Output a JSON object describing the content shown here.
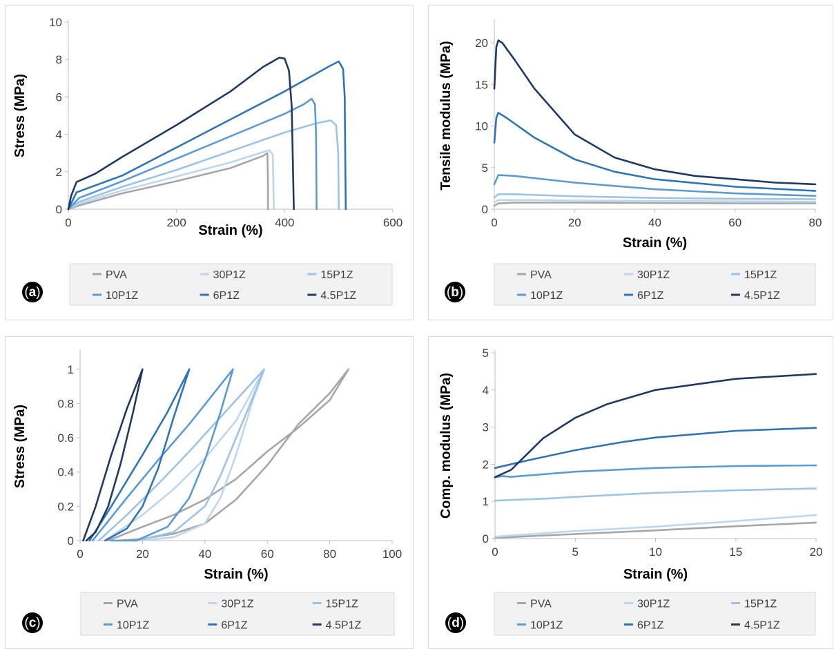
{
  "colors": {
    "PVA": "#a6a6a6",
    "30P1Z": "#bdd7ee",
    "15P1Z": "#9dc3e6",
    "10P1Z": "#5b9bd5",
    "6P1Z": "#2e75b6",
    "4.5P1Z": "#1f3864"
  },
  "legend": [
    "PVA",
    "30P1Z",
    "15P1Z",
    "10P1Z",
    "6P1Z",
    "4.5P1Z"
  ],
  "chart_data": [
    {
      "panel": "a",
      "type": "line",
      "xlabel": "Strain (%)",
      "ylabel": "Stress (MPa)",
      "xlim": [
        0,
        600
      ],
      "ylim": [
        0,
        10
      ],
      "xticks": [
        0,
        200,
        400,
        600
      ],
      "yticks": [
        0,
        2,
        4,
        6,
        8,
        10
      ],
      "series": [
        {
          "name": "PVA",
          "points": [
            [
              0,
              0
            ],
            [
              20,
              0.2
            ],
            [
              100,
              0.85
            ],
            [
              200,
              1.5
            ],
            [
              300,
              2.2
            ],
            [
              360,
              2.85
            ],
            [
              368,
              3.0
            ],
            [
              369,
              1.5
            ],
            [
              369,
              0
            ]
          ]
        },
        {
          "name": "30P1Z",
          "points": [
            [
              0,
              0
            ],
            [
              20,
              0.3
            ],
            [
              100,
              1.0
            ],
            [
              200,
              1.75
            ],
            [
              300,
              2.5
            ],
            [
              360,
              3.05
            ],
            [
              372,
              3.15
            ],
            [
              378,
              2.9
            ],
            [
              379,
              1.5
            ],
            [
              380,
              0
            ]
          ]
        },
        {
          "name": "15P1Z",
          "points": [
            [
              0,
              0
            ],
            [
              20,
              0.4
            ],
            [
              100,
              1.2
            ],
            [
              200,
              2.1
            ],
            [
              300,
              3.1
            ],
            [
              400,
              4.1
            ],
            [
              460,
              4.6
            ],
            [
              485,
              4.75
            ],
            [
              495,
              4.5
            ],
            [
              499,
              3.0
            ],
            [
              500,
              0
            ]
          ]
        },
        {
          "name": "10P1Z",
          "points": [
            [
              0,
              0
            ],
            [
              20,
              0.6
            ],
            [
              100,
              1.5
            ],
            [
              200,
              2.7
            ],
            [
              300,
              3.9
            ],
            [
              400,
              5.1
            ],
            [
              435,
              5.6
            ],
            [
              450,
              5.9
            ],
            [
              456,
              5.6
            ],
            [
              458,
              4.0
            ],
            [
              459,
              0
            ]
          ]
        },
        {
          "name": "6P1Z",
          "points": [
            [
              0,
              0
            ],
            [
              15,
              0.9
            ],
            [
              100,
              1.8
            ],
            [
              200,
              3.3
            ],
            [
              300,
              4.8
            ],
            [
              400,
              6.3
            ],
            [
              480,
              7.6
            ],
            [
              500,
              7.9
            ],
            [
              508,
              7.5
            ],
            [
              511,
              6.0
            ],
            [
              513,
              0
            ]
          ]
        },
        {
          "name": "4.5P1Z",
          "points": [
            [
              0,
              0
            ],
            [
              5,
              0.7
            ],
            [
              15,
              1.45
            ],
            [
              50,
              1.9
            ],
            [
              100,
              2.8
            ],
            [
              200,
              4.5
            ],
            [
              300,
              6.3
            ],
            [
              360,
              7.6
            ],
            [
              390,
              8.1
            ],
            [
              400,
              8.05
            ],
            [
              408,
              7.4
            ],
            [
              413,
              5.5
            ],
            [
              417,
              0
            ]
          ]
        }
      ]
    },
    {
      "panel": "b",
      "type": "line",
      "xlabel": "Strain (%)",
      "ylabel": "Tensile modulus (MPa)",
      "xlim": [
        0,
        80
      ],
      "ylim": [
        0,
        22.5
      ],
      "xticks": [
        0,
        20,
        40,
        60,
        80
      ],
      "yticks": [
        0,
        5,
        10,
        15,
        20
      ],
      "series": [
        {
          "name": "PVA",
          "points": [
            [
              0,
              0.4
            ],
            [
              1,
              0.7
            ],
            [
              5,
              0.8
            ],
            [
              20,
              0.8
            ],
            [
              40,
              0.75
            ],
            [
              60,
              0.7
            ],
            [
              80,
              0.7
            ]
          ]
        },
        {
          "name": "30P1Z",
          "points": [
            [
              0,
              0.8
            ],
            [
              1,
              1.1
            ],
            [
              10,
              1.1
            ],
            [
              20,
              1.05
            ],
            [
              40,
              1.0
            ],
            [
              60,
              0.95
            ],
            [
              80,
              0.9
            ]
          ]
        },
        {
          "name": "15P1Z",
          "points": [
            [
              0,
              1.4
            ],
            [
              1,
              1.8
            ],
            [
              5,
              1.8
            ],
            [
              20,
              1.55
            ],
            [
              40,
              1.35
            ],
            [
              60,
              1.25
            ],
            [
              80,
              1.2
            ]
          ]
        },
        {
          "name": "10P1Z",
          "points": [
            [
              0,
              3.0
            ],
            [
              1,
              4.1
            ],
            [
              5,
              4.0
            ],
            [
              20,
              3.2
            ],
            [
              40,
              2.4
            ],
            [
              60,
              1.9
            ],
            [
              80,
              1.6
            ]
          ]
        },
        {
          "name": "6P1Z",
          "points": [
            [
              0,
              8.0
            ],
            [
              0.5,
              11.0
            ],
            [
              1,
              11.6
            ],
            [
              3,
              11.0
            ],
            [
              10,
              8.6
            ],
            [
              20,
              6.0
            ],
            [
              30,
              4.5
            ],
            [
              40,
              3.6
            ],
            [
              60,
              2.7
            ],
            [
              80,
              2.2
            ]
          ]
        },
        {
          "name": "4.5P1Z",
          "points": [
            [
              0,
              14.5
            ],
            [
              0.5,
              19.5
            ],
            [
              1,
              20.3
            ],
            [
              2,
              20.0
            ],
            [
              5,
              18.0
            ],
            [
              10,
              14.5
            ],
            [
              20,
              9.0
            ],
            [
              30,
              6.2
            ],
            [
              40,
              4.8
            ],
            [
              50,
              4.0
            ],
            [
              60,
              3.6
            ],
            [
              70,
              3.2
            ],
            [
              80,
              3.0
            ]
          ]
        }
      ]
    },
    {
      "panel": "c",
      "type": "line",
      "xlabel": "Strain (%)",
      "ylabel": "Stress (MPa)",
      "xlim": [
        0,
        100
      ],
      "ylim": [
        0,
        1.1
      ],
      "xticks": [
        0,
        20,
        40,
        60,
        80,
        100
      ],
      "yticks": [
        0,
        0.2,
        0.4,
        0.6,
        0.8,
        1
      ],
      "series": [
        {
          "name": "PVA",
          "points": [
            [
              9,
              0
            ],
            [
              20,
              0.08
            ],
            [
              30,
              0.15
            ],
            [
              40,
              0.24
            ],
            [
              50,
              0.36
            ],
            [
              60,
              0.52
            ],
            [
              70,
              0.66
            ],
            [
              80,
              0.82
            ],
            [
              86,
              1.0
            ],
            [
              80,
              0.86
            ],
            [
              70,
              0.68
            ],
            [
              60,
              0.44
            ],
            [
              50,
              0.24
            ],
            [
              40,
              0.1
            ],
            [
              30,
              0.04
            ],
            [
              20,
              0.01
            ],
            [
              12,
              0
            ]
          ]
        },
        {
          "name": "30P1Z",
          "points": [
            [
              8,
              0
            ],
            [
              20,
              0.15
            ],
            [
              30,
              0.3
            ],
            [
              40,
              0.48
            ],
            [
              50,
              0.7
            ],
            [
              59,
              1.0
            ],
            [
              55,
              0.8
            ],
            [
              50,
              0.5
            ],
            [
              45,
              0.25
            ],
            [
              40,
              0.1
            ],
            [
              30,
              0.02
            ],
            [
              20,
              0
            ]
          ]
        },
        {
          "name": "15P1Z",
          "points": [
            [
              6,
              0
            ],
            [
              15,
              0.15
            ],
            [
              25,
              0.33
            ],
            [
              35,
              0.52
            ],
            [
              45,
              0.72
            ],
            [
              59,
              1.0
            ],
            [
              55,
              0.82
            ],
            [
              50,
              0.6
            ],
            [
              45,
              0.38
            ],
            [
              40,
              0.2
            ],
            [
              30,
              0.05
            ],
            [
              18,
              0
            ]
          ]
        },
        {
          "name": "10P1Z",
          "points": [
            [
              4,
              0
            ],
            [
              15,
              0.25
            ],
            [
              25,
              0.47
            ],
            [
              35,
              0.68
            ],
            [
              49,
              1.0
            ],
            [
              45,
              0.75
            ],
            [
              40,
              0.47
            ],
            [
              35,
              0.25
            ],
            [
              28,
              0.08
            ],
            [
              18,
              0
            ],
            [
              10,
              0
            ]
          ]
        },
        {
          "name": "6P1Z",
          "points": [
            [
              3,
              0
            ],
            [
              10,
              0.2
            ],
            [
              20,
              0.5
            ],
            [
              28,
              0.75
            ],
            [
              35,
              1.0
            ],
            [
              30,
              0.72
            ],
            [
              25,
              0.42
            ],
            [
              20,
              0.2
            ],
            [
              15,
              0.07
            ],
            [
              8,
              0
            ]
          ]
        },
        {
          "name": "4.5P1Z",
          "points": [
            [
              1,
              0
            ],
            [
              5,
              0.2
            ],
            [
              10,
              0.5
            ],
            [
              15,
              0.77
            ],
            [
              20,
              1.0
            ],
            [
              17,
              0.75
            ],
            [
              13,
              0.45
            ],
            [
              9,
              0.2
            ],
            [
              5,
              0.05
            ],
            [
              2,
              0
            ]
          ]
        }
      ]
    },
    {
      "panel": "d",
      "type": "line",
      "xlabel": "Strain (%)",
      "ylabel": "Comp. modulus (MPa)",
      "xlim": [
        0,
        20
      ],
      "ylim": [
        0,
        5
      ],
      "xticks": [
        0,
        5,
        10,
        15,
        20
      ],
      "yticks": [
        0,
        1,
        2,
        3,
        4,
        5
      ],
      "series": [
        {
          "name": "PVA",
          "points": [
            [
              0,
              0.02
            ],
            [
              5,
              0.12
            ],
            [
              10,
              0.22
            ],
            [
              15,
              0.33
            ],
            [
              20,
              0.43
            ]
          ]
        },
        {
          "name": "30P1Z",
          "points": [
            [
              0,
              0.05
            ],
            [
              5,
              0.2
            ],
            [
              10,
              0.32
            ],
            [
              15,
              0.47
            ],
            [
              20,
              0.63
            ]
          ]
        },
        {
          "name": "15P1Z",
          "points": [
            [
              0,
              1.02
            ],
            [
              3,
              1.07
            ],
            [
              5,
              1.12
            ],
            [
              10,
              1.23
            ],
            [
              15,
              1.3
            ],
            [
              20,
              1.35
            ]
          ]
        },
        {
          "name": "10P1Z",
          "points": [
            [
              0,
              1.65
            ],
            [
              0.5,
              1.68
            ],
            [
              1,
              1.66
            ],
            [
              3,
              1.73
            ],
            [
              5,
              1.8
            ],
            [
              10,
              1.9
            ],
            [
              15,
              1.95
            ],
            [
              20,
              1.97
            ]
          ]
        },
        {
          "name": "6P1Z",
          "points": [
            [
              0,
              1.9
            ],
            [
              2,
              2.1
            ],
            [
              5,
              2.38
            ],
            [
              8,
              2.6
            ],
            [
              10,
              2.72
            ],
            [
              15,
              2.9
            ],
            [
              20,
              2.98
            ]
          ]
        },
        {
          "name": "4.5P1Z",
          "points": [
            [
              0,
              1.65
            ],
            [
              1,
              1.85
            ],
            [
              3,
              2.7
            ],
            [
              5,
              3.25
            ],
            [
              7,
              3.62
            ],
            [
              10,
              4.0
            ],
            [
              15,
              4.3
            ],
            [
              20,
              4.43
            ]
          ]
        }
      ]
    }
  ],
  "panels": [
    {
      "label": "a"
    },
    {
      "label": "b"
    },
    {
      "label": "c"
    },
    {
      "label": "d"
    }
  ]
}
